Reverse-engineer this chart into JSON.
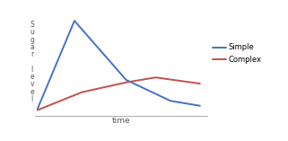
{
  "simple_x": [
    0,
    2.5,
    6,
    9,
    11
  ],
  "simple_y": [
    0.85,
    8.0,
    3.2,
    1.5,
    1.1
  ],
  "complex_x": [
    0,
    3,
    6,
    8,
    11
  ],
  "complex_y": [
    0.75,
    2.2,
    3.0,
    3.4,
    2.9
  ],
  "simple_color": "#4472C4",
  "complex_color": "#C0504D",
  "xlabel": "time",
  "ylabel": "S\nu\ng\na\nr\n \nl\ne\nv\ne\nl",
  "legend_simple": "Simple",
  "legend_complex": "Complex",
  "bg_color": "#FFFFFF",
  "figsize": [
    3.21,
    1.57
  ],
  "dpi": 100,
  "xlim": [
    -0.2,
    11.5
  ],
  "ylim": [
    0.3,
    9.0
  ]
}
